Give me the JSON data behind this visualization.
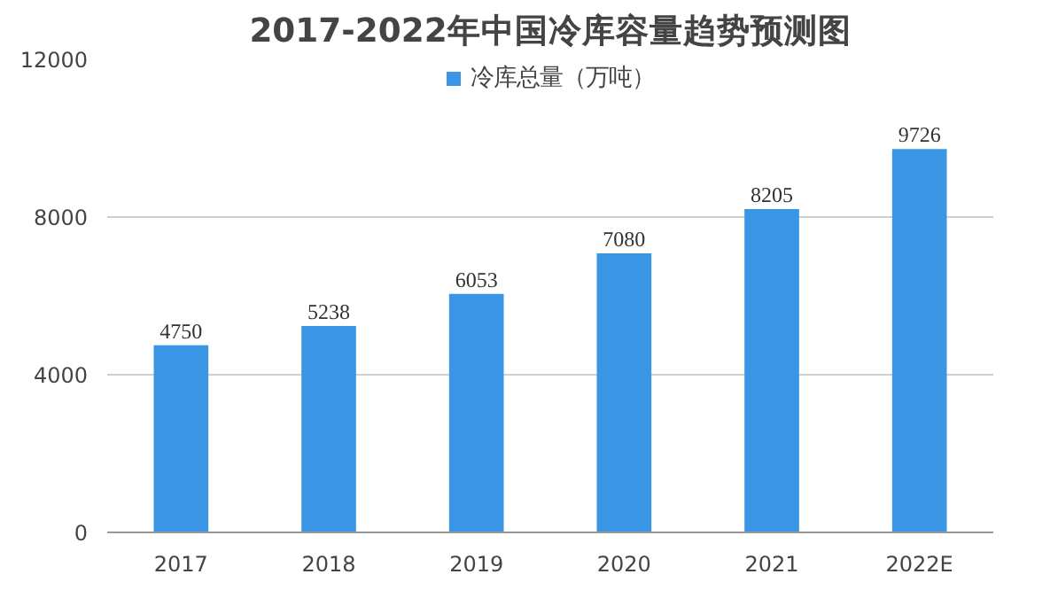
{
  "chart_data": {
    "type": "bar",
    "title": "2017-2022年中国冷库容量趋势预测图",
    "categories": [
      "2017",
      "2018",
      "2019",
      "2020",
      "2021",
      "2022E"
    ],
    "series": [
      {
        "name": "冷库总量（万吨）",
        "color": "#3a95e4",
        "values": [
          4750,
          5238,
          6053,
          7080,
          8205,
          9726
        ]
      }
    ],
    "ylim": [
      0,
      12000
    ],
    "yticks": [
      0,
      4000,
      8000,
      12000
    ],
    "grid": "y",
    "legend": "top",
    "data_labels": true
  }
}
